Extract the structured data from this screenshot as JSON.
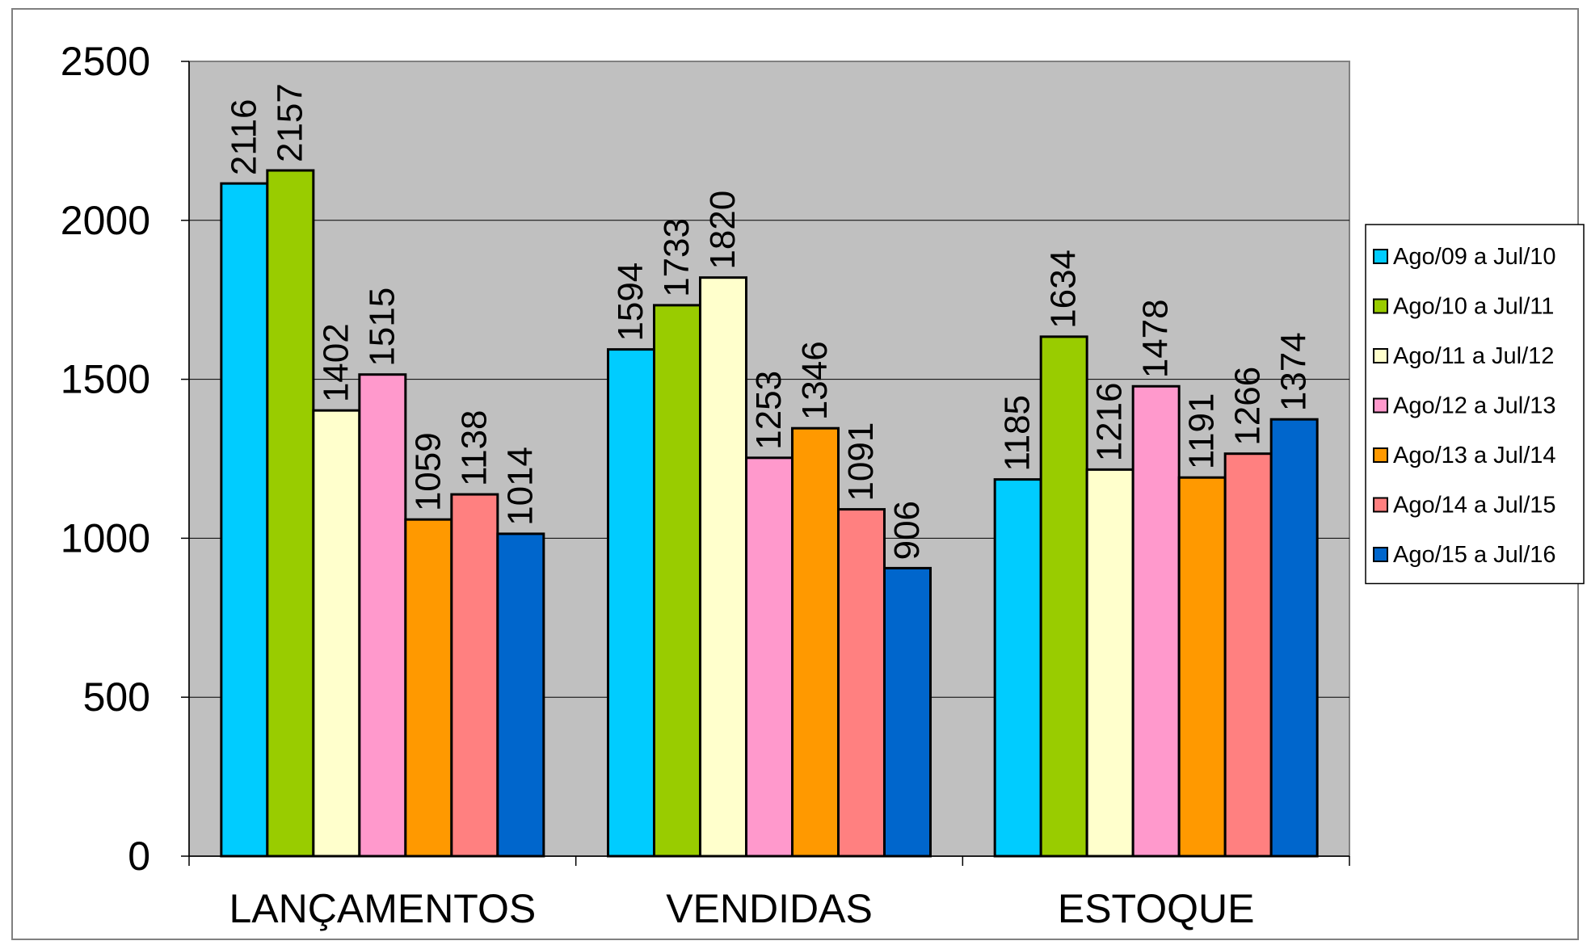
{
  "chart_data": {
    "type": "bar",
    "title": "",
    "xlabel": "",
    "ylabel": "",
    "categories": [
      "LANÇAMENTOS",
      "VENDIDAS",
      "ESTOQUE"
    ],
    "ylim": [
      0,
      2500
    ],
    "yticks": [
      "0",
      "500",
      "1000",
      "1500",
      "2000",
      "2500"
    ],
    "grid": true,
    "legend_position": "right",
    "plot_background": "#c0c0c0",
    "series": [
      {
        "name": "Ago/09 a Jul/10",
        "color": "#00ccff",
        "values": [
          2116,
          1594,
          1185
        ]
      },
      {
        "name": "Ago/10 a Jul/11",
        "color": "#99cc00",
        "values": [
          2157,
          1733,
          1634
        ]
      },
      {
        "name": "Ago/11 a Jul/12",
        "color": "#ffffcc",
        "values": [
          1402,
          1820,
          1216
        ]
      },
      {
        "name": "Ago/12 a Jul/13",
        "color": "#ff99cc",
        "values": [
          1515,
          1253,
          1478
        ]
      },
      {
        "name": "Ago/13 a Jul/14",
        "color": "#ff9900",
        "values": [
          1059,
          1346,
          1191
        ]
      },
      {
        "name": "Ago/14 a Jul/15",
        "color": "#ff8080",
        "values": [
          1138,
          1091,
          1266
        ]
      },
      {
        "name": "Ago/15 a Jul/16",
        "color": "#0066cc",
        "values": [
          1014,
          906,
          1374
        ]
      }
    ]
  }
}
